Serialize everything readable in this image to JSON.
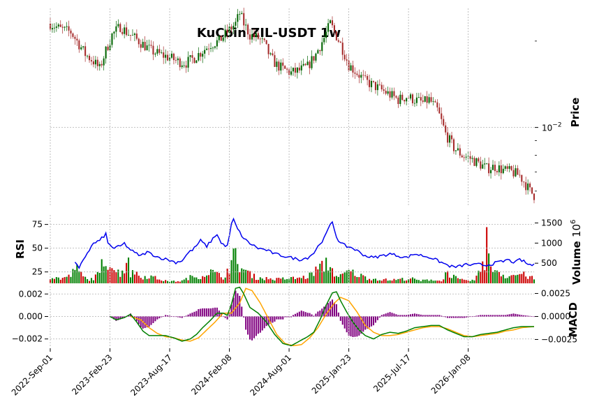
{
  "chart_data": {
    "type": "candlestick",
    "title": "KuCoin ZIL-USDT 1w",
    "x_tick_labels": [
      "2022-Sep-01",
      "2023-Feb-23",
      "2023-Aug-17",
      "2024-Feb-08",
      "2024-Aug-01",
      "2025-Jan-23",
      "2025-Jul-17",
      "2026-Jan-08"
    ],
    "price_panel": {
      "ylabel": "Price",
      "scale": "log",
      "tick_label": "10^{-2}",
      "tick_base": "10",
      "tick_exp": "−2",
      "ylim": [
        0.0053,
        0.026
      ]
    },
    "price_anchors": [
      [
        0,
        0.023
      ],
      [
        5,
        0.022
      ],
      [
        10,
        0.0215
      ],
      [
        14,
        0.0195
      ],
      [
        17,
        0.018
      ],
      [
        21,
        0.017
      ],
      [
        24,
        0.016
      ],
      [
        27,
        0.0185
      ],
      [
        30,
        0.021
      ],
      [
        34,
        0.0225
      ],
      [
        37,
        0.0215
      ],
      [
        41,
        0.0205
      ],
      [
        45,
        0.0195
      ],
      [
        49,
        0.0185
      ],
      [
        53,
        0.018
      ],
      [
        58,
        0.0175
      ],
      [
        62,
        0.017
      ],
      [
        66,
        0.0168
      ],
      [
        70,
        0.0175
      ],
      [
        74,
        0.0185
      ],
      [
        78,
        0.0195
      ],
      [
        82,
        0.02
      ],
      [
        86,
        0.0215
      ],
      [
        90,
        0.023
      ],
      [
        92,
        0.025
      ],
      [
        94,
        0.023
      ],
      [
        97,
        0.021
      ],
      [
        101,
        0.0205
      ],
      [
        104,
        0.0195
      ],
      [
        107,
        0.0175
      ],
      [
        110,
        0.0165
      ],
      [
        113,
        0.016
      ],
      [
        117,
        0.0155
      ],
      [
        121,
        0.0158
      ],
      [
        125,
        0.0163
      ],
      [
        129,
        0.018
      ],
      [
        133,
        0.0205
      ],
      [
        136,
        0.023
      ],
      [
        138,
        0.0215
      ],
      [
        141,
        0.0195
      ],
      [
        145,
        0.0165
      ],
      [
        149,
        0.0155
      ],
      [
        153,
        0.0145
      ],
      [
        157,
        0.014
      ],
      [
        161,
        0.0135
      ],
      [
        165,
        0.013
      ],
      [
        169,
        0.0125
      ],
      [
        173,
        0.0128
      ],
      [
        177,
        0.0125
      ],
      [
        181,
        0.0122
      ],
      [
        184,
        0.0125
      ],
      [
        188,
        0.0115
      ],
      [
        192,
        0.0095
      ],
      [
        196,
        0.0085
      ],
      [
        200,
        0.008
      ],
      [
        204,
        0.0078
      ],
      [
        208,
        0.0075
      ],
      [
        212,
        0.0072
      ],
      [
        216,
        0.0073
      ],
      [
        220,
        0.0071
      ],
      [
        224,
        0.007
      ],
      [
        228,
        0.0068
      ],
      [
        233,
        0.006
      ],
      [
        235,
        0.0058
      ]
    ],
    "rsi_panel": {
      "ylabel": "RSI",
      "yticks": [
        25,
        50,
        75
      ],
      "ylim": [
        13,
        85
      ],
      "anchors": [
        [
          12,
          35
        ],
        [
          14,
          28
        ],
        [
          16,
          38
        ],
        [
          18,
          45
        ],
        [
          21,
          55
        ],
        [
          24,
          58
        ],
        [
          27,
          65
        ],
        [
          28,
          55
        ],
        [
          31,
          50
        ],
        [
          34,
          52
        ],
        [
          36,
          55
        ],
        [
          38,
          50
        ],
        [
          41,
          45
        ],
        [
          44,
          42
        ],
        [
          47,
          46
        ],
        [
          50,
          43
        ],
        [
          53,
          40
        ],
        [
          57,
          38
        ],
        [
          61,
          35
        ],
        [
          64,
          37
        ],
        [
          67,
          45
        ],
        [
          70,
          50
        ],
        [
          73,
          58
        ],
        [
          76,
          52
        ],
        [
          79,
          60
        ],
        [
          81,
          65
        ],
        [
          83,
          55
        ],
        [
          86,
          52
        ],
        [
          88,
          75
        ],
        [
          89,
          80
        ],
        [
          91,
          70
        ],
        [
          94,
          60
        ],
        [
          97,
          55
        ],
        [
          101,
          50
        ],
        [
          105,
          48
        ],
        [
          109,
          44
        ],
        [
          113,
          42
        ],
        [
          117,
          40
        ],
        [
          121,
          38
        ],
        [
          125,
          40
        ],
        [
          128,
          45
        ],
        [
          131,
          55
        ],
        [
          133,
          60
        ],
        [
          135,
          70
        ],
        [
          137,
          78
        ],
        [
          139,
          62
        ],
        [
          141,
          55
        ],
        [
          144,
          52
        ],
        [
          147,
          50
        ],
        [
          150,
          46
        ],
        [
          153,
          42
        ],
        [
          157,
          40
        ],
        [
          161,
          42
        ],
        [
          165,
          44
        ],
        [
          169,
          42
        ],
        [
          173,
          40
        ],
        [
          177,
          44
        ],
        [
          181,
          42
        ],
        [
          185,
          40
        ],
        [
          189,
          36
        ],
        [
          193,
          32
        ],
        [
          196,
          30
        ],
        [
          199,
          31
        ],
        [
          202,
          33
        ],
        [
          205,
          32
        ],
        [
          208,
          33
        ],
        [
          211,
          32
        ],
        [
          214,
          33
        ],
        [
          217,
          35
        ],
        [
          220,
          36
        ],
        [
          222,
          38
        ],
        [
          224,
          36
        ],
        [
          226,
          35
        ],
        [
          228,
          38
        ],
        [
          230,
          36
        ],
        [
          232,
          33
        ],
        [
          235,
          32
        ]
      ]
    },
    "volume_panel": {
      "ylabel": "Volume",
      "multiplier": "10",
      "multiplier_exp": "6",
      "yticks": [
        500,
        1000,
        1500
      ],
      "ylim": [
        0,
        1700
      ],
      "anchors": [
        [
          0,
          150
        ],
        [
          5,
          120
        ],
        [
          10,
          180
        ],
        [
          12,
          420
        ],
        [
          15,
          220
        ],
        [
          18,
          90
        ],
        [
          21,
          120
        ],
        [
          24,
          250
        ],
        [
          26,
          650
        ],
        [
          27,
          480
        ],
        [
          28,
          500
        ],
        [
          29,
          600
        ],
        [
          30,
          420
        ],
        [
          32,
          300
        ],
        [
          34,
          250
        ],
        [
          36,
          350
        ],
        [
          37,
          550
        ],
        [
          38,
          780
        ],
        [
          39,
          200
        ],
        [
          41,
          300
        ],
        [
          44,
          150
        ],
        [
          48,
          180
        ],
        [
          52,
          120
        ],
        [
          56,
          60
        ],
        [
          60,
          50
        ],
        [
          64,
          60
        ],
        [
          68,
          150
        ],
        [
          72,
          170
        ],
        [
          74,
          180
        ],
        [
          77,
          300
        ],
        [
          80,
          250
        ],
        [
          84,
          140
        ],
        [
          88,
          500
        ],
        [
          89,
          660
        ],
        [
          90,
          650
        ],
        [
          91,
          460
        ],
        [
          95,
          300
        ],
        [
          100,
          140
        ],
        [
          105,
          120
        ],
        [
          110,
          100
        ],
        [
          115,
          120
        ],
        [
          120,
          130
        ],
        [
          125,
          160
        ],
        [
          129,
          320
        ],
        [
          131,
          400
        ],
        [
          133,
          420
        ],
        [
          134,
          500
        ],
        [
          136,
          420
        ],
        [
          138,
          250
        ],
        [
          140,
          140
        ],
        [
          145,
          300
        ],
        [
          150,
          200
        ],
        [
          155,
          120
        ],
        [
          160,
          100
        ],
        [
          165,
          80
        ],
        [
          170,
          100
        ],
        [
          175,
          120
        ],
        [
          180,
          60
        ],
        [
          185,
          100
        ],
        [
          190,
          50
        ],
        [
          192,
          260
        ],
        [
          195,
          200
        ],
        [
          198,
          100
        ],
        [
          202,
          60
        ],
        [
          206,
          80
        ],
        [
          209,
          300
        ],
        [
          210,
          620
        ],
        [
          211,
          520
        ],
        [
          212,
          1580
        ],
        [
          213,
          600
        ],
        [
          214,
          320
        ],
        [
          216,
          400
        ],
        [
          218,
          280
        ],
        [
          221,
          180
        ],
        [
          225,
          200
        ],
        [
          229,
          240
        ],
        [
          232,
          160
        ],
        [
          235,
          120
        ]
      ]
    },
    "macd_panel": {
      "ylabel": "MACD",
      "left_yticks": [
        "0.002",
        "0.000",
        "−0.002"
      ],
      "left_values": [
        0.002,
        0.0,
        -0.002
      ],
      "left_ylim": [
        -0.0027,
        0.0027
      ],
      "right_yticks": [
        "0.0025",
        "0.0000",
        "−0.0025"
      ],
      "right_values": [
        0.0025,
        0.0,
        -0.0025
      ],
      "right_ylim": [
        -0.0033,
        0.0033
      ],
      "macd_color": "#008000",
      "signal_color": "#FFA500",
      "histogram_color": "#800080",
      "macd_anchors": [
        [
          29,
          0.0
        ],
        [
          32,
          -0.0003
        ],
        [
          36,
          -0.0001
        ],
        [
          39,
          0.0002
        ],
        [
          42,
          -0.0005
        ],
        [
          45,
          -0.0013
        ],
        [
          48,
          -0.0017
        ],
        [
          52,
          -0.0017
        ],
        [
          56,
          -0.0017
        ],
        [
          60,
          -0.0019
        ],
        [
          64,
          -0.0022
        ],
        [
          68,
          -0.002
        ],
        [
          71,
          -0.0016
        ],
        [
          74,
          -0.001
        ],
        [
          78,
          -0.0003
        ],
        [
          81,
          0.0003
        ],
        [
          84,
          0.0003
        ],
        [
          86,
          0.0001
        ],
        [
          88,
          0.0011
        ],
        [
          90,
          0.0025
        ],
        [
          92,
          0.0026
        ],
        [
          94,
          0.002
        ],
        [
          97,
          0.0008
        ],
        [
          101,
          0.0003
        ],
        [
          105,
          -0.0005
        ],
        [
          109,
          -0.0016
        ],
        [
          113,
          -0.0024
        ],
        [
          117,
          -0.0026
        ],
        [
          121,
          -0.0022
        ],
        [
          125,
          -0.0018
        ],
        [
          128,
          -0.0014
        ],
        [
          131,
          -0.0003
        ],
        [
          134,
          0.001
        ],
        [
          137,
          0.0021
        ],
        [
          139,
          0.0022
        ],
        [
          141,
          0.0014
        ],
        [
          144,
          0.0004
        ],
        [
          147,
          -0.0005
        ],
        [
          150,
          -0.0012
        ],
        [
          153,
          -0.0017
        ],
        [
          157,
          -0.002
        ],
        [
          161,
          -0.0016
        ],
        [
          165,
          -0.0014
        ],
        [
          169,
          -0.0015
        ],
        [
          173,
          -0.0013
        ],
        [
          177,
          -0.001
        ],
        [
          181,
          -0.0009
        ],
        [
          185,
          -0.0008
        ],
        [
          189,
          -0.0008
        ],
        [
          193,
          -0.0012
        ],
        [
          197,
          -0.0015
        ],
        [
          201,
          -0.0018
        ],
        [
          205,
          -0.0018
        ],
        [
          209,
          -0.0016
        ],
        [
          213,
          -0.0015
        ],
        [
          217,
          -0.0014
        ],
        [
          221,
          -0.0012
        ],
        [
          225,
          -0.001
        ],
        [
          229,
          -0.0009
        ],
        [
          235,
          -0.0009
        ]
      ],
      "signal_anchors": [
        [
          39,
          0.0
        ],
        [
          44,
          -0.0003
        ],
        [
          48,
          -0.001
        ],
        [
          52,
          -0.0015
        ],
        [
          56,
          -0.0018
        ],
        [
          60,
          -0.0019
        ],
        [
          64,
          -0.0021
        ],
        [
          68,
          -0.0022
        ],
        [
          72,
          -0.0019
        ],
        [
          76,
          -0.0012
        ],
        [
          80,
          -0.0005
        ],
        [
          84,
          0.0003
        ],
        [
          88,
          0.0003
        ],
        [
          92,
          0.0012
        ],
        [
          95,
          0.0025
        ],
        [
          98,
          0.0023
        ],
        [
          102,
          0.0012
        ],
        [
          106,
          -0.0002
        ],
        [
          110,
          -0.0016
        ],
        [
          114,
          -0.0024
        ],
        [
          118,
          -0.0026
        ],
        [
          122,
          -0.0025
        ],
        [
          126,
          -0.0019
        ],
        [
          130,
          -0.001
        ],
        [
          134,
          0.0002
        ],
        [
          138,
          0.0012
        ],
        [
          141,
          0.0017
        ],
        [
          145,
          0.0014
        ],
        [
          149,
          0.0004
        ],
        [
          153,
          -0.0008
        ],
        [
          157,
          -0.0014
        ],
        [
          161,
          -0.0017
        ],
        [
          165,
          -0.0017
        ],
        [
          169,
          -0.0016
        ],
        [
          173,
          -0.0014
        ],
        [
          177,
          -0.0012
        ],
        [
          181,
          -0.001
        ],
        [
          185,
          -0.0009
        ],
        [
          189,
          -0.0009
        ],
        [
          193,
          -0.0011
        ],
        [
          197,
          -0.0014
        ],
        [
          201,
          -0.0017
        ],
        [
          205,
          -0.0018
        ],
        [
          209,
          -0.0017
        ],
        [
          213,
          -0.0016
        ],
        [
          217,
          -0.0015
        ],
        [
          221,
          -0.0013
        ],
        [
          225,
          -0.0012
        ],
        [
          229,
          -0.001
        ],
        [
          235,
          -0.0009
        ]
      ]
    },
    "colors": {
      "up": "#006400",
      "down": "#A52A2A",
      "vol_up": "#008000",
      "vol_down": "#CC0000",
      "rsi": "#0000EE"
    }
  }
}
